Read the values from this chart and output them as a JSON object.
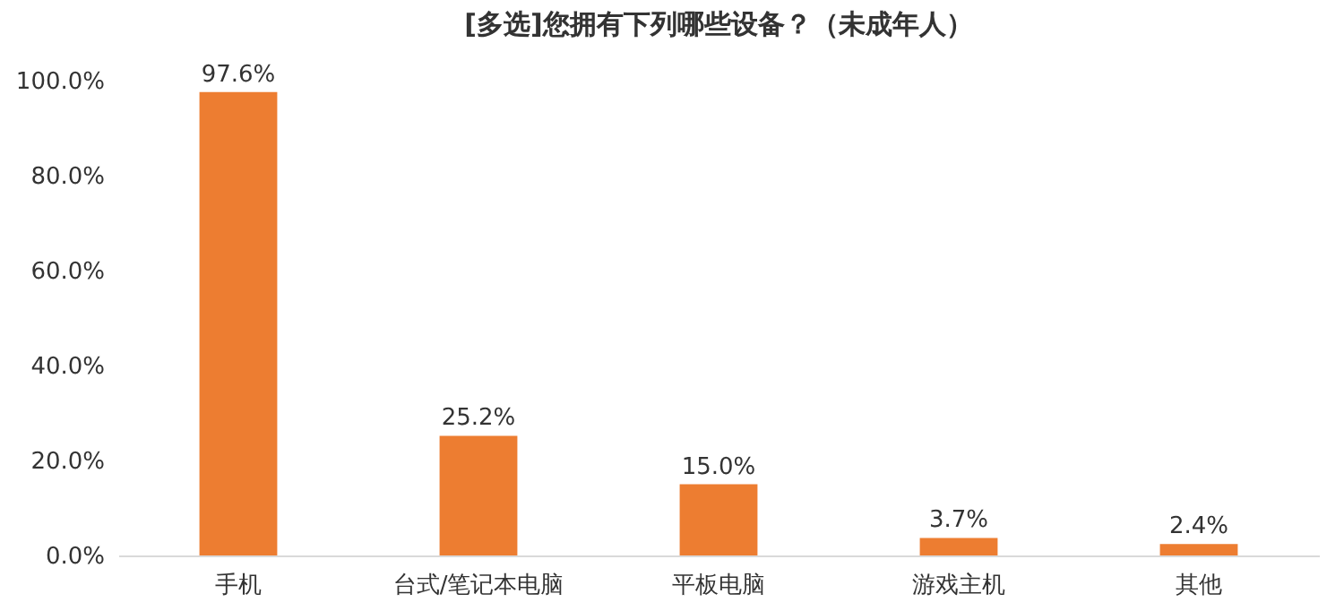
{
  "chart_data": {
    "type": "bar",
    "title": "[多选]您拥有下列哪些设备？（未成年人）",
    "categories": [
      "手机",
      "台式/笔记本电脑",
      "平板电脑",
      "游戏主机",
      "其他"
    ],
    "values": [
      97.6,
      25.2,
      15.0,
      3.7,
      2.4
    ],
    "value_labels": [
      "97.6%",
      "25.2%",
      "15.0%",
      "3.7%",
      "2.4%"
    ],
    "color": "#ed7d31",
    "ylim": [
      0,
      100
    ],
    "yticks": [
      {
        "value": 0,
        "label": "0.0%"
      },
      {
        "value": 20,
        "label": "20.0%"
      },
      {
        "value": 40,
        "label": "40.0%"
      },
      {
        "value": 60,
        "label": "60.0%"
      },
      {
        "value": 80,
        "label": "80.0%"
      },
      {
        "value": 100,
        "label": "100.0%"
      }
    ],
    "grid": false
  }
}
